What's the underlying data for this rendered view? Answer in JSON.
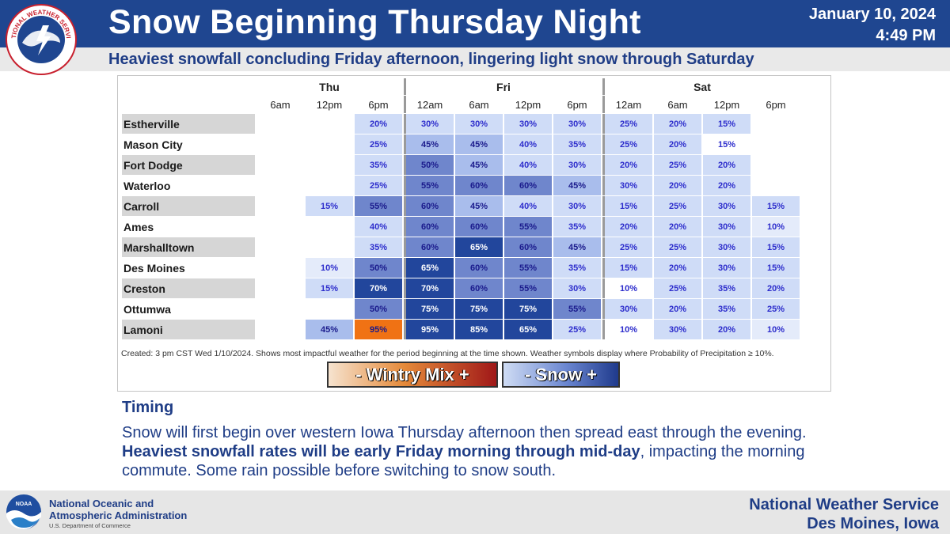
{
  "header": {
    "title": "Snow Beginning Thursday Night",
    "date": "January 10, 2024",
    "time": "4:49 PM",
    "subtitle": "Heaviest snowfall concluding Friday afternoon, lingering light snow through Saturday",
    "logo_text": "NATIONAL WEATHER SERVICE"
  },
  "colors": {
    "header_bg": "#1f4690",
    "text_blue": "#1f3d86",
    "snow_light": "#cfdcf7",
    "snow_mid": "#a9bdec",
    "snow_dark": "#6f86cc",
    "snow_heavy": "#22469c",
    "mix_heavy": "#f07214"
  },
  "table": {
    "days": [
      {
        "label": "Thu",
        "span": 3
      },
      {
        "label": "Fri",
        "span": 4
      },
      {
        "label": "Sat",
        "span": 4
      }
    ],
    "times": [
      "6am",
      "12pm",
      "6pm",
      "12am",
      "6am",
      "12pm",
      "6pm",
      "12am",
      "6am",
      "12pm",
      "6pm"
    ],
    "rows": [
      {
        "city": "Estherville",
        "values": [
          "",
          "",
          "20%",
          "30%",
          "30%",
          "30%",
          "30%",
          "25%",
          "20%",
          "15%",
          ""
        ]
      },
      {
        "city": "Mason City",
        "values": [
          "",
          "",
          "25%",
          "45%",
          "45%",
          "40%",
          "35%",
          "25%",
          "20%",
          "15%",
          ""
        ]
      },
      {
        "city": "Fort Dodge",
        "values": [
          "",
          "",
          "35%",
          "50%",
          "45%",
          "40%",
          "30%",
          "20%",
          "25%",
          "20%",
          ""
        ]
      },
      {
        "city": "Waterloo",
        "values": [
          "",
          "",
          "25%",
          "55%",
          "60%",
          "60%",
          "45%",
          "30%",
          "20%",
          "20%",
          ""
        ]
      },
      {
        "city": "Carroll",
        "values": [
          "",
          "15%",
          "55%",
          "60%",
          "45%",
          "40%",
          "30%",
          "15%",
          "25%",
          "30%",
          "15%"
        ]
      },
      {
        "city": "Ames",
        "values": [
          "",
          "",
          "40%",
          "60%",
          "60%",
          "55%",
          "35%",
          "20%",
          "20%",
          "30%",
          "10%"
        ]
      },
      {
        "city": "Marshalltown",
        "values": [
          "",
          "",
          "35%",
          "60%",
          "65%",
          "60%",
          "45%",
          "25%",
          "25%",
          "30%",
          "15%"
        ]
      },
      {
        "city": "Des Moines",
        "values": [
          "",
          "10%",
          "50%",
          "65%",
          "60%",
          "55%",
          "35%",
          "15%",
          "20%",
          "30%",
          "15%"
        ]
      },
      {
        "city": "Creston",
        "values": [
          "",
          "15%",
          "70%",
          "70%",
          "60%",
          "55%",
          "30%",
          "10%",
          "25%",
          "35%",
          "20%"
        ]
      },
      {
        "city": "Ottumwa",
        "values": [
          "",
          "",
          "50%",
          "75%",
          "75%",
          "75%",
          "55%",
          "30%",
          "20%",
          "35%",
          "25%"
        ]
      },
      {
        "city": "Lamoni",
        "values": [
          "",
          "45%",
          "95%",
          "95%",
          "85%",
          "65%",
          "25%",
          "10%",
          "30%",
          "20%",
          "10%"
        ]
      }
    ],
    "footnote": "Created: 3 pm CST Wed 1/10/2024. Shows most impactful weather for the period beginning at the time shown. Weather symbols display where Probability of Precipitation ≥ 10%."
  },
  "legend": {
    "wintry_mix": "- Wintry Mix +",
    "snow": "- Snow +"
  },
  "timing": {
    "heading": "Timing",
    "text_1": "Snow will first begin over western Iowa Thursday afternoon then spread east through the evening. ",
    "text_bold": "Heaviest snowfall rates will be early Friday morning through mid-day",
    "text_2": ", impacting the morning commute. Some rain possible before switching to snow south."
  },
  "footer": {
    "noaa_line1": "National Oceanic and",
    "noaa_line2": "Atmospheric Administration",
    "noaa_dept": "U.S. Department of Commerce",
    "noaa_logo_text": "NOAA",
    "office_line1": "National Weather Service",
    "office_line2": "Des Moines, Iowa"
  }
}
